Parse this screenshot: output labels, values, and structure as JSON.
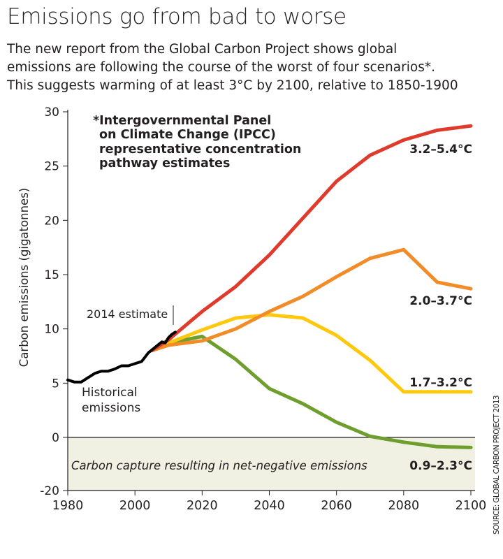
{
  "header": {
    "title": "Emissions go from bad to worse",
    "subtitle_lines": [
      "The new report from the Global Carbon Project shows global",
      "emissions are following the course of the worst of four scenarios*.",
      "This suggests warming of at least 3°C by 2100, relative to 1850-1900"
    ]
  },
  "chart_data": {
    "type": "line",
    "ylabel": "Carbon emissions (gigatonnes)",
    "xlabel": "",
    "xlim": [
      1980,
      2100
    ],
    "x_ticks": [
      "1980",
      "2000",
      "2020",
      "2040",
      "2060",
      "2080",
      "2100"
    ],
    "y_ticks": [
      "30",
      "25",
      "20",
      "15",
      "10",
      "5",
      "0",
      "-20"
    ],
    "y_tick_values": [
      30,
      25,
      20,
      15,
      10,
      5,
      0,
      -20
    ],
    "y_scale_note": "axis below 0 is compressed (0 to -20)",
    "grid": false,
    "footnote_lines": [
      "*Intergovernmental Panel",
      "on Climate Change (IPCC)",
      "representative concentration",
      "pathway estimates"
    ],
    "annotations": {
      "estimate": "2014 estimate",
      "historical_lines": [
        "Historical",
        "emissions"
      ],
      "negative_region": "Carbon capture resulting in net-negative emissions"
    },
    "source": "SOURCE: GLOBAL CARBON PROJECT 2013",
    "negative_region_color": "#f1f1e3",
    "series": [
      {
        "label": "Historical emissions",
        "color": "#000000",
        "x": [
          1980,
          1982,
          1984,
          1986,
          1988,
          1990,
          1992,
          1994,
          1996,
          1998,
          2000,
          2002,
          2004,
          2006,
          2008,
          2009,
          2010,
          2011,
          2012
        ],
        "y": [
          5.3,
          5.1,
          5.1,
          5.5,
          5.9,
          6.1,
          6.1,
          6.3,
          6.6,
          6.6,
          6.8,
          7.0,
          7.8,
          8.3,
          8.8,
          8.7,
          9.2,
          9.5,
          9.7
        ]
      },
      {
        "label": "3.2–5.4°C",
        "color": "#e03a2c",
        "x": [
          2005,
          2010,
          2020,
          2030,
          2040,
          2050,
          2060,
          2070,
          2080,
          2090,
          2100
        ],
        "y": [
          8.0,
          9.0,
          11.6,
          13.9,
          16.8,
          20.2,
          23.6,
          26.0,
          27.4,
          28.3,
          28.7
        ]
      },
      {
        "label": "2.0–3.7°C",
        "color": "#f28c28",
        "x": [
          2005,
          2010,
          2020,
          2030,
          2040,
          2050,
          2060,
          2070,
          2080,
          2090,
          2100
        ],
        "y": [
          8.0,
          8.5,
          8.9,
          10.0,
          11.6,
          13.0,
          14.8,
          16.5,
          17.3,
          14.3,
          13.7
        ]
      },
      {
        "label": "1.7–3.2°C",
        "color": "#fdc80e",
        "x": [
          2005,
          2010,
          2020,
          2030,
          2040,
          2050,
          2060,
          2070,
          2080,
          2090,
          2100
        ],
        "y": [
          8.0,
          8.7,
          9.9,
          11.0,
          11.3,
          11.0,
          9.4,
          7.1,
          4.2,
          4.2,
          4.2
        ]
      },
      {
        "label": "0.9–2.3°C",
        "color": "#6e9e2e",
        "x": [
          2005,
          2010,
          2020,
          2030,
          2040,
          2050,
          2060,
          2070,
          2080,
          2090,
          2100
        ],
        "y": [
          8.0,
          8.7,
          9.3,
          7.2,
          4.5,
          3.1,
          1.4,
          0.1,
          -1.8,
          -3.5,
          -3.8
        ]
      }
    ]
  }
}
